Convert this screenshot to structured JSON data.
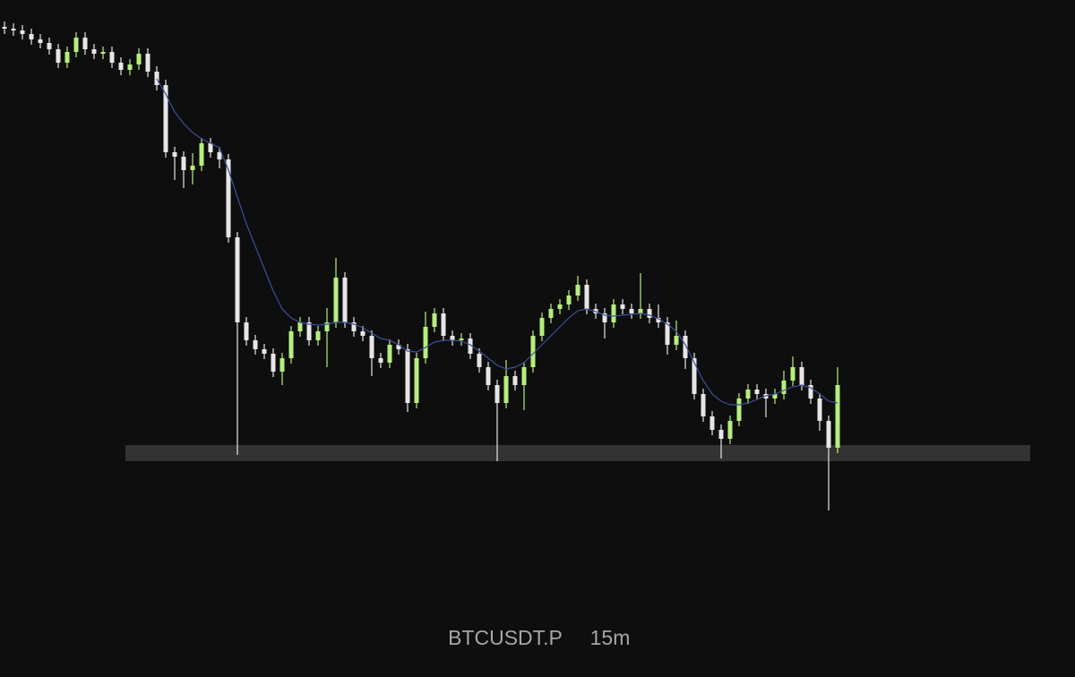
{
  "chart_data": {
    "type": "candlestick",
    "symbol": "BTCUSDT.P",
    "interval": "15m",
    "ylim": [
      0,
      75.6
    ],
    "up_color": "#b6ee7c",
    "down_color": "#e6e6e6",
    "zone": [
      24.1,
      25.9
    ],
    "zone_color": "#3a3a3a",
    "ma_color": "#3d4f9a",
    "candles": [
      [
        72.6,
        73.2,
        71.8,
        72.4
      ],
      [
        72.4,
        73.0,
        71.6,
        72.2
      ],
      [
        72.2,
        72.8,
        71.2,
        71.8
      ],
      [
        71.8,
        72.4,
        70.6,
        71.2
      ],
      [
        71.2,
        71.8,
        70.2,
        70.8
      ],
      [
        70.8,
        71.4,
        69.5,
        70.1
      ],
      [
        70.1,
        70.7,
        68.0,
        68.6
      ],
      [
        68.6,
        70.4,
        68.0,
        69.8
      ],
      [
        69.8,
        72.0,
        69.2,
        71.4
      ],
      [
        71.4,
        72.0,
        69.5,
        70.1
      ],
      [
        70.1,
        70.7,
        69.0,
        69.6
      ],
      [
        69.6,
        70.4,
        69.0,
        69.8
      ],
      [
        69.8,
        70.4,
        68.0,
        68.6
      ],
      [
        68.6,
        69.2,
        67.2,
        67.8
      ],
      [
        67.8,
        69.0,
        67.2,
        68.4
      ],
      [
        68.4,
        70.2,
        67.8,
        69.6
      ],
      [
        69.6,
        70.2,
        67.0,
        67.6
      ],
      [
        67.6,
        68.2,
        65.5,
        66.1
      ],
      [
        66.1,
        66.7,
        58.0,
        58.6
      ],
      [
        58.6,
        59.2,
        55.5,
        58.1
      ],
      [
        58.1,
        58.7,
        54.6,
        56.6
      ],
      [
        56.6,
        58.5,
        55.0,
        57.1
      ],
      [
        57.1,
        60.2,
        56.5,
        59.6
      ],
      [
        59.6,
        60.2,
        58.0,
        58.6
      ],
      [
        58.6,
        59.2,
        56.8,
        57.8
      ],
      [
        57.8,
        58.4,
        48.5,
        49.1
      ],
      [
        49.1,
        49.7,
        24.8,
        39.6
      ],
      [
        39.6,
        40.2,
        37.0,
        37.6
      ],
      [
        37.6,
        38.2,
        36.0,
        36.6
      ],
      [
        36.6,
        37.2,
        35.5,
        36.1
      ],
      [
        36.1,
        36.7,
        33.5,
        34.1
      ],
      [
        34.1,
        36.2,
        32.6,
        35.6
      ],
      [
        35.6,
        39.2,
        35.0,
        38.6
      ],
      [
        38.6,
        40.2,
        38.0,
        39.6
      ],
      [
        39.6,
        40.2,
        37.0,
        37.6
      ],
      [
        37.6,
        39.2,
        37.0,
        38.6
      ],
      [
        38.6,
        41.2,
        34.6,
        39.6
      ],
      [
        39.6,
        46.8,
        39.0,
        44.6
      ],
      [
        44.6,
        45.2,
        39.0,
        39.6
      ],
      [
        39.6,
        40.2,
        38.0,
        38.6
      ],
      [
        38.6,
        39.2,
        37.5,
        38.1
      ],
      [
        38.1,
        38.7,
        33.6,
        35.6
      ],
      [
        35.6,
        36.2,
        34.5,
        35.1
      ],
      [
        35.1,
        37.7,
        34.5,
        37.1
      ],
      [
        37.1,
        37.7,
        36.0,
        36.6
      ],
      [
        36.6,
        37.2,
        29.6,
        30.6
      ],
      [
        30.6,
        36.2,
        30.0,
        35.6
      ],
      [
        35.6,
        40.8,
        35.0,
        39.1
      ],
      [
        39.1,
        41.2,
        38.5,
        40.6
      ],
      [
        40.6,
        41.2,
        37.5,
        38.1
      ],
      [
        38.1,
        38.7,
        37.0,
        37.6
      ],
      [
        37.6,
        38.4,
        37.0,
        37.8
      ],
      [
        37.8,
        38.4,
        35.5,
        36.1
      ],
      [
        36.1,
        36.7,
        34.0,
        34.6
      ],
      [
        34.6,
        35.2,
        32.0,
        32.6
      ],
      [
        32.6,
        33.2,
        24.1,
        30.6
      ],
      [
        30.6,
        35.4,
        30.0,
        33.6
      ],
      [
        33.6,
        34.2,
        32.0,
        32.6
      ],
      [
        32.6,
        35.2,
        29.8,
        34.6
      ],
      [
        34.6,
        38.7,
        34.0,
        38.1
      ],
      [
        38.1,
        40.7,
        37.5,
        40.1
      ],
      [
        40.1,
        41.7,
        39.5,
        41.1
      ],
      [
        41.1,
        42.2,
        40.5,
        41.6
      ],
      [
        41.6,
        43.2,
        41.0,
        42.6
      ],
      [
        42.6,
        44.8,
        42.0,
        43.8
      ],
      [
        43.8,
        44.4,
        40.5,
        41.1
      ],
      [
        41.1,
        41.7,
        40.0,
        40.6
      ],
      [
        40.6,
        41.2,
        37.8,
        39.6
      ],
      [
        39.6,
        42.2,
        39.0,
        41.6
      ],
      [
        41.6,
        42.2,
        40.5,
        41.1
      ],
      [
        41.1,
        41.7,
        40.0,
        40.6
      ],
      [
        40.6,
        45.1,
        40.0,
        41.1
      ],
      [
        41.1,
        41.7,
        39.5,
        40.1
      ],
      [
        40.1,
        41.6,
        39.0,
        39.6
      ],
      [
        39.6,
        40.2,
        36.0,
        37.1
      ],
      [
        37.1,
        39.8,
        36.5,
        38.1
      ],
      [
        38.1,
        38.7,
        34.4,
        35.6
      ],
      [
        35.6,
        36.2,
        31.0,
        31.6
      ],
      [
        31.6,
        32.2,
        28.5,
        29.1
      ],
      [
        29.1,
        29.7,
        27.0,
        27.6
      ],
      [
        27.6,
        28.2,
        24.4,
        26.6
      ],
      [
        26.6,
        29.2,
        26.0,
        28.6
      ],
      [
        28.6,
        31.7,
        28.0,
        31.1
      ],
      [
        31.1,
        32.7,
        30.5,
        32.1
      ],
      [
        32.1,
        32.7,
        31.0,
        31.6
      ],
      [
        31.6,
        32.2,
        29.0,
        31.1
      ],
      [
        31.1,
        32.2,
        30.5,
        31.6
      ],
      [
        31.6,
        34.2,
        31.0,
        33.1
      ],
      [
        33.1,
        35.8,
        32.5,
        34.6
      ],
      [
        34.6,
        35.2,
        32.0,
        32.6
      ],
      [
        32.6,
        33.2,
        30.5,
        31.1
      ],
      [
        31.1,
        31.7,
        27.5,
        28.6
      ],
      [
        28.6,
        29.2,
        18.6,
        25.6
      ],
      [
        25.6,
        34.6,
        25.0,
        32.6
      ]
    ],
    "ma": [
      null,
      null,
      null,
      null,
      null,
      null,
      null,
      null,
      null,
      null,
      null,
      null,
      null,
      null,
      null,
      null,
      null,
      66.8,
      65.1,
      63.1,
      61.8,
      60.8,
      60.1,
      59.6,
      59.1,
      56.6,
      53.6,
      50.6,
      48.1,
      45.6,
      43.1,
      41.1,
      40.1,
      39.6,
      39.4,
      39.3,
      39.4,
      39.6,
      39.6,
      39.4,
      39.0,
      38.4,
      37.8,
      37.6,
      37.1,
      36.4,
      36.3,
      36.8,
      37.4,
      37.6,
      37.6,
      37.5,
      37.1,
      36.4,
      35.6,
      34.8,
      34.4,
      34.6,
      35.1,
      36.1,
      37.1,
      38.1,
      39.1,
      40.1,
      40.9,
      41.1,
      40.8,
      40.4,
      40.3,
      40.4,
      40.5,
      40.6,
      40.4,
      40.0,
      39.4,
      38.6,
      37.1,
      35.1,
      33.1,
      31.6,
      30.8,
      30.4,
      30.4,
      30.6,
      31.0,
      31.4,
      31.6,
      32.0,
      32.4,
      32.6,
      32.3,
      31.6,
      30.8,
      30.6
    ]
  }
}
